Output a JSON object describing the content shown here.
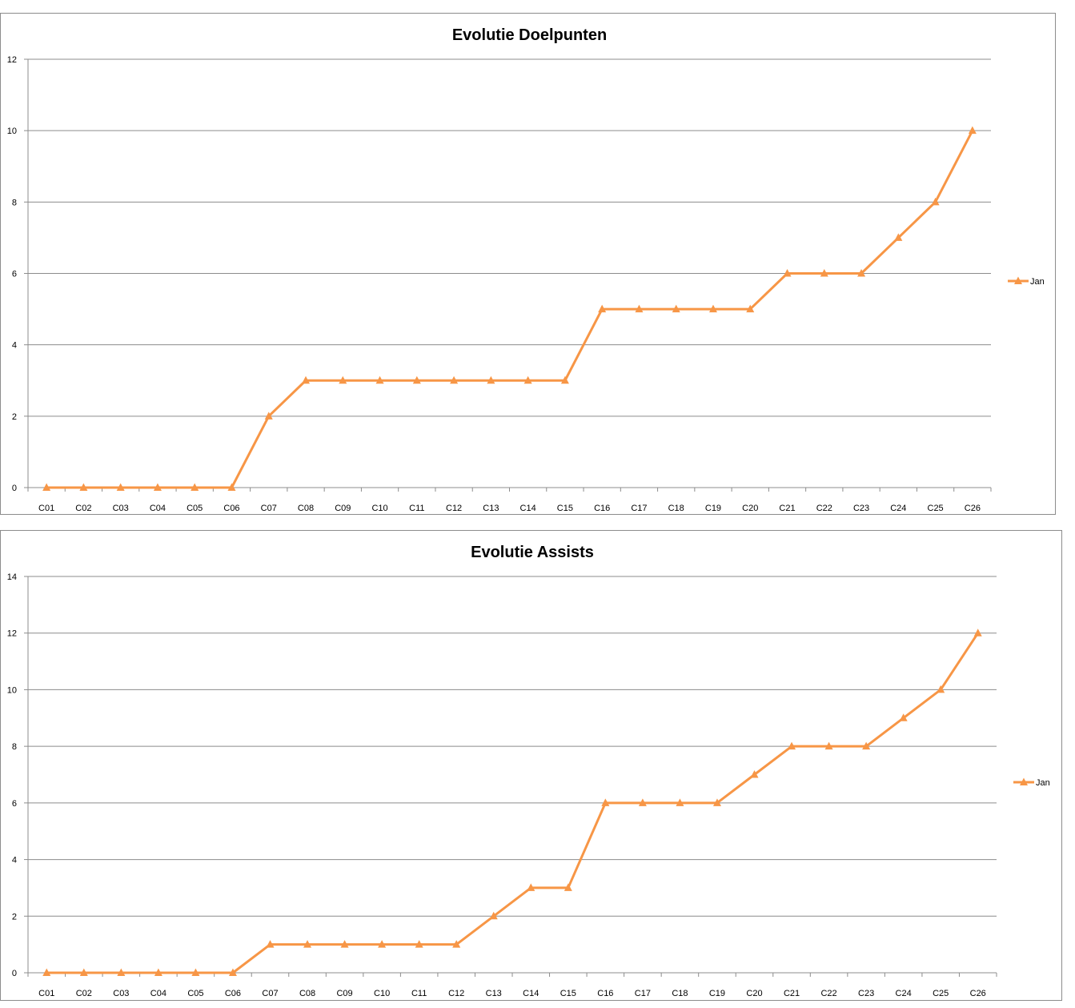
{
  "chart_data": [
    {
      "type": "line",
      "title": "Evolutie Doelpunten",
      "xlabel": "",
      "ylabel": "",
      "categories": [
        "C01",
        "C02",
        "C03",
        "C04",
        "C05",
        "C06",
        "C07",
        "C08",
        "C09",
        "C10",
        "C11",
        "C12",
        "C13",
        "C14",
        "C15",
        "C16",
        "C17",
        "C18",
        "C19",
        "C20",
        "C21",
        "C22",
        "C23",
        "C24",
        "C25",
        "C26"
      ],
      "ylim": [
        0,
        12
      ],
      "yticks": [
        0,
        2,
        4,
        6,
        8,
        10,
        12
      ],
      "grid": true,
      "legend_position": "right",
      "series": [
        {
          "name": "Jan",
          "color": "#f79646",
          "marker": "triangle",
          "values": [
            0,
            0,
            0,
            0,
            0,
            0,
            2,
            3,
            3,
            3,
            3,
            3,
            3,
            3,
            3,
            5,
            5,
            5,
            5,
            5,
            6,
            6,
            6,
            7,
            8,
            10
          ]
        }
      ]
    },
    {
      "type": "line",
      "title": "Evolutie Assists",
      "xlabel": "",
      "ylabel": "",
      "categories": [
        "C01",
        "C02",
        "C03",
        "C04",
        "C05",
        "C06",
        "C07",
        "C08",
        "C09",
        "C10",
        "C11",
        "C12",
        "C13",
        "C14",
        "C15",
        "C16",
        "C17",
        "C18",
        "C19",
        "C20",
        "C21",
        "C22",
        "C23",
        "C24",
        "C25",
        "C26"
      ],
      "ylim": [
        0,
        14
      ],
      "yticks": [
        0,
        2,
        4,
        6,
        8,
        10,
        12,
        14
      ],
      "grid": true,
      "legend_position": "right",
      "series": [
        {
          "name": "Jan",
          "color": "#f79646",
          "marker": "triangle",
          "values": [
            0,
            0,
            0,
            0,
            0,
            0,
            1,
            1,
            1,
            1,
            1,
            1,
            2,
            3,
            3,
            6,
            6,
            6,
            6,
            7,
            8,
            8,
            8,
            9,
            10,
            12
          ]
        }
      ]
    }
  ]
}
